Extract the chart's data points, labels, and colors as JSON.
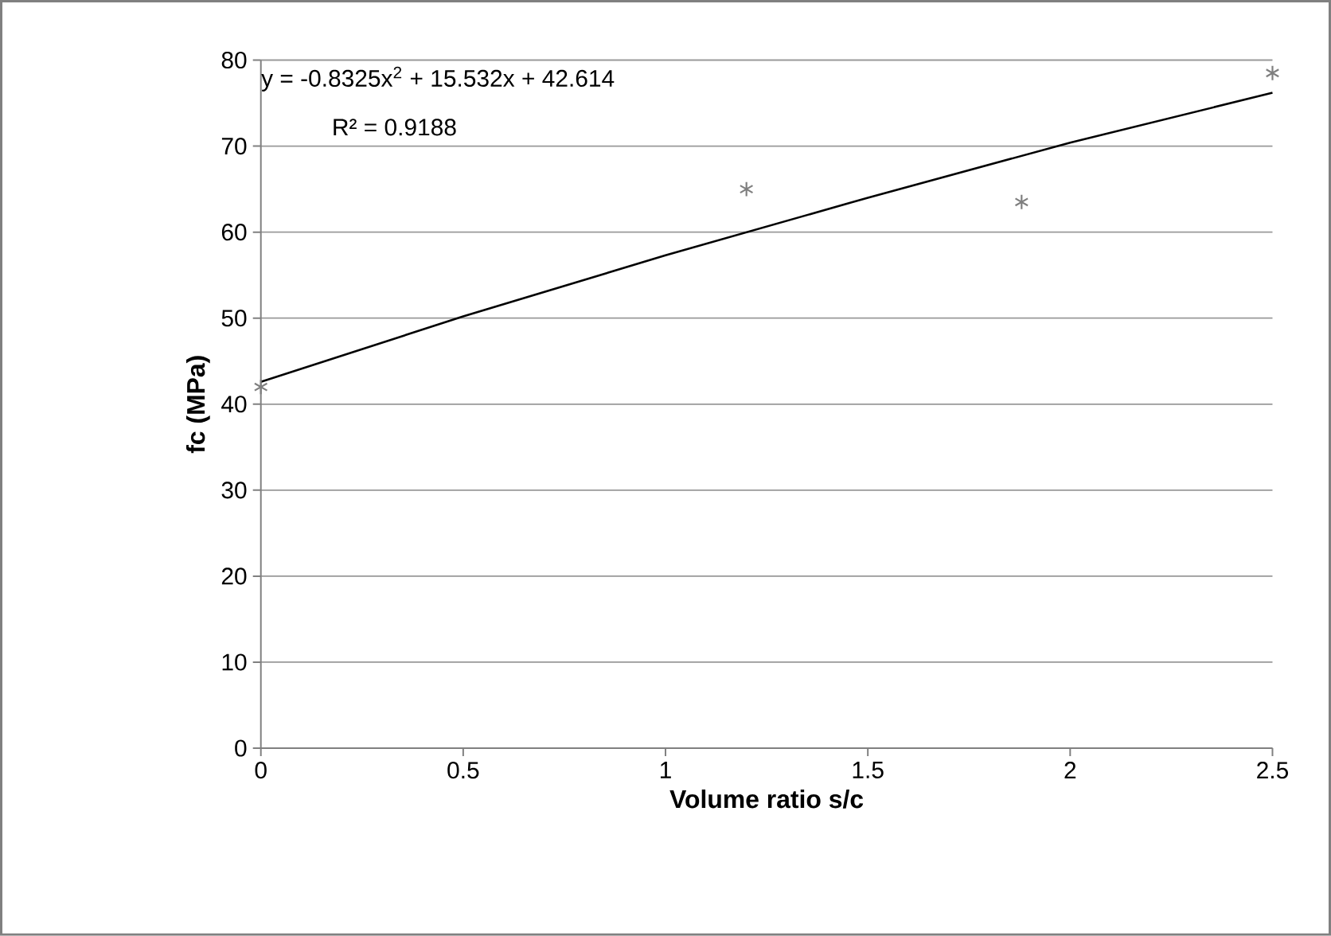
{
  "chart_data": {
    "type": "scatter",
    "xlabel": "Volume ratio s/c",
    "ylabel": "fc (MPa)",
    "xlim": [
      0,
      2.5
    ],
    "xticks": [
      0,
      0.5,
      1,
      1.5,
      2,
      2.5
    ],
    "ylim": [
      0,
      80
    ],
    "yticks": [
      0,
      10,
      20,
      30,
      40,
      50,
      60,
      70,
      80
    ],
    "grid": "y",
    "marker": "cross",
    "series": [
      {
        "color": "#7f7f7f",
        "x": [
          0,
          1.2,
          1.88,
          2.5
        ],
        "values": [
          42,
          65,
          63.5,
          78.5
        ]
      },
      {
        "type": "line",
        "color": "#000000",
        "marker": "none",
        "x": [
          0,
          0.5,
          1,
          1.5,
          2,
          2.5
        ],
        "values": [
          42.6,
          50.2,
          57.3,
          64.0,
          70.4,
          76.2
        ]
      }
    ],
    "annotations": [
      "y = -0.8325x$^{2}$ + 15.532x + 42.614",
      "R² = 0.9188"
    ]
  }
}
